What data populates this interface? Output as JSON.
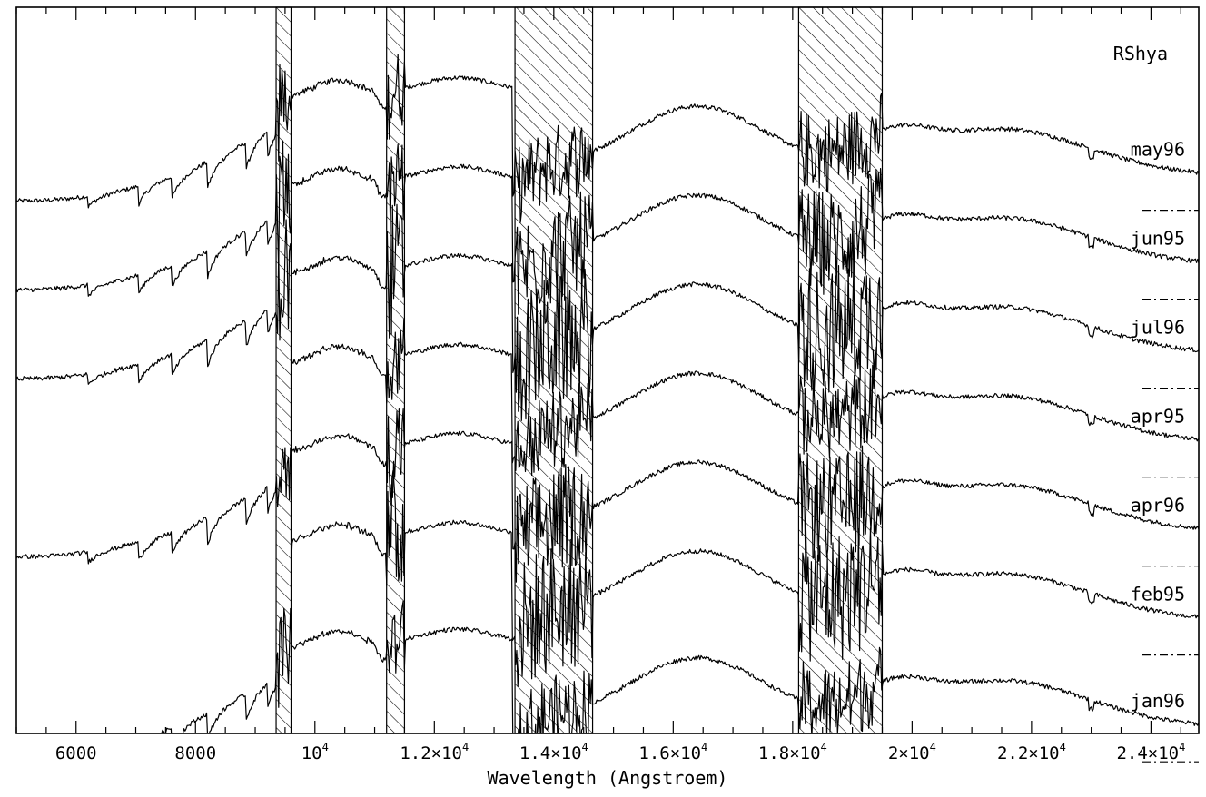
{
  "chart_data": {
    "type": "line",
    "title": "RShya",
    "xlabel": "Wavelength (Angstroem)",
    "ylabel": "",
    "xlim": [
      5000,
      24800
    ],
    "grid": false,
    "x_ticks": [
      {
        "value": 6000,
        "base": "6000",
        "exp": ""
      },
      {
        "value": 8000,
        "base": "8000",
        "exp": ""
      },
      {
        "value": 10000,
        "base": "10",
        "exp": "4"
      },
      {
        "value": 12000,
        "base": "1.2×10",
        "exp": "4"
      },
      {
        "value": 14000,
        "base": "1.4×10",
        "exp": "4"
      },
      {
        "value": 16000,
        "base": "1.6×10",
        "exp": "4"
      },
      {
        "value": 18000,
        "base": "1.8×10",
        "exp": "4"
      },
      {
        "value": 20000,
        "base": "2×10",
        "exp": "4"
      },
      {
        "value": 22000,
        "base": "2.2×10",
        "exp": "4"
      },
      {
        "value": 24000,
        "base": "2.4×10",
        "exp": "4"
      }
    ],
    "excluded_bands": [
      [
        9350,
        9600
      ],
      [
        11200,
        11500
      ],
      [
        13350,
        14650
      ],
      [
        18100,
        19500
      ]
    ],
    "series": [
      {
        "name": "may96",
        "offset": 7.2,
        "has_optical": true
      },
      {
        "name": "jun95",
        "offset": 6.2,
        "has_optical": true
      },
      {
        "name": "jul96",
        "offset": 5.2,
        "has_optical": true
      },
      {
        "name": "apr95",
        "offset": 4.2,
        "has_optical": false
      },
      {
        "name": "apr96",
        "offset": 3.2,
        "has_optical": true
      },
      {
        "name": "feb95",
        "offset": 2.2,
        "has_optical": false
      },
      {
        "name": "jan96",
        "offset": 1.0,
        "has_optical": true
      }
    ]
  }
}
